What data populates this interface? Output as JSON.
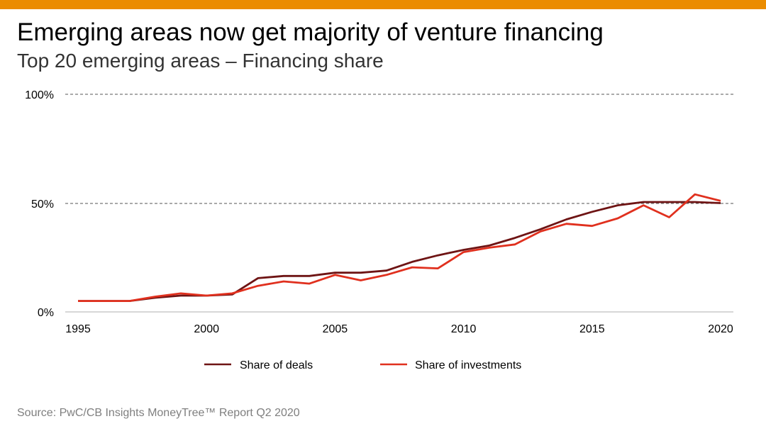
{
  "header": {
    "title": "Emerging areas now get majority of venture financing",
    "subtitle": "Top 20 emerging areas – Financing share",
    "accent_color": "#eb8c00"
  },
  "footer": {
    "source": "Source: PwC/CB Insights MoneyTree™ Report Q2 2020"
  },
  "chart_data": {
    "type": "line",
    "x": [
      1995,
      1996,
      1997,
      1998,
      1999,
      2000,
      2001,
      2002,
      2003,
      2004,
      2005,
      2006,
      2007,
      2008,
      2009,
      2010,
      2011,
      2012,
      2013,
      2014,
      2015,
      2016,
      2017,
      2018,
      2019,
      2020
    ],
    "series": [
      {
        "name": "Share of deals",
        "color": "#6e1414",
        "values": [
          5,
          5,
          5,
          6.5,
          7.5,
          7.5,
          8,
          15.5,
          16.5,
          16.5,
          18,
          18,
          19,
          23,
          26,
          28.5,
          30.5,
          34,
          38,
          42.5,
          46,
          49,
          50.5,
          50.5,
          50.5,
          50
        ]
      },
      {
        "name": "Share of investments",
        "color": "#e0301e",
        "values": [
          5,
          5,
          5,
          7,
          8.5,
          7.5,
          8.5,
          12,
          14,
          13,
          17,
          14.5,
          17,
          20.5,
          20,
          27.5,
          29.5,
          31,
          37,
          40.5,
          39.5,
          43,
          49,
          43.5,
          54,
          51
        ]
      }
    ],
    "xticks": [
      "1995",
      "2000",
      "2005",
      "2010",
      "2015",
      "2020"
    ],
    "yticks": [
      "0%",
      "50%",
      "100%"
    ],
    "xlim": [
      1995,
      2020
    ],
    "ylim": [
      0,
      100
    ],
    "grid": "dashed horizontal at 50% and 100%",
    "legend_position": "bottom-center"
  }
}
